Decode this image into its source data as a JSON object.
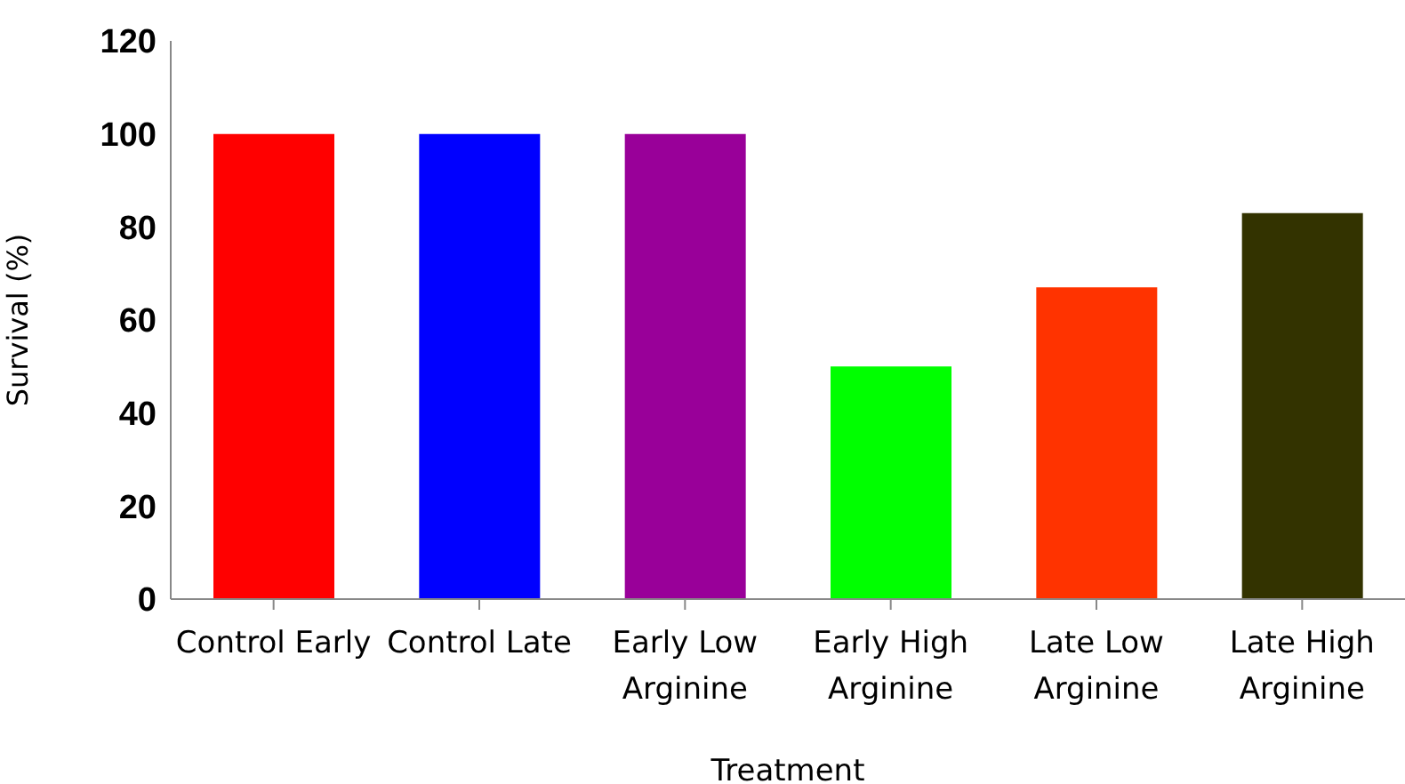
{
  "chart_data": {
    "type": "bar",
    "xlabel": "Treatment",
    "ylabel": "Survival (%)",
    "categories": [
      "Control Early",
      "Control Late",
      "Early Low Arginine",
      "Early High Arginine",
      "Late Low Arginine",
      "Late High Arginine"
    ],
    "values": [
      100,
      100,
      100,
      50,
      67,
      83
    ],
    "colors": [
      "#ff0000",
      "#0000ff",
      "#990099",
      "#00ff00",
      "#ff3300",
      "#333300"
    ],
    "ylim": [
      0,
      120
    ],
    "yticks": [
      0,
      20,
      40,
      60,
      80,
      100,
      120
    ],
    "grid": false,
    "legend": false
  }
}
